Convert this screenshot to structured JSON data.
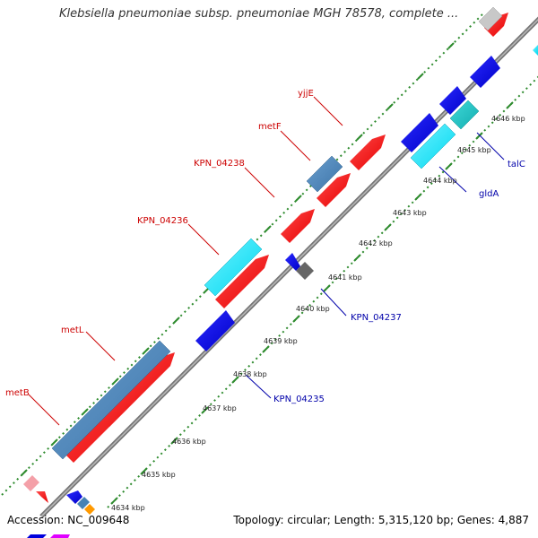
{
  "title": "Klebsiella pneumoniae subsp. pneumoniae MGH 78578, complete ...",
  "footer": {
    "accession": "Accession: NC_009648",
    "topology": "Topology: circular; Length: 5,315,120 bp; Genes: 4,887"
  },
  "colors": {
    "forward_gene": "#ff0000",
    "reverse_gene": "#0000dd",
    "operon": "#4682b4",
    "cyan_gene": "#00e5ff",
    "teal_gene": "#20c0c0",
    "grey_gene": "#666666",
    "ruler_dash": "#228b22",
    "forward_label": "#cc0000",
    "reverse_label": "#0000aa"
  },
  "ruler_labels": [
    "4634 kbp",
    "4635 kbp",
    "4636 kbp",
    "4637 kbp",
    "4638 kbp",
    "4639 kbp",
    "4640 kbp",
    "4641 kbp",
    "4642 kbp",
    "4643 kbp",
    "4644 kbp",
    "4645 kbp",
    "4646 kbp"
  ],
  "gene_labels": {
    "top": [
      "yjjE",
      "metF",
      "KPN_04238",
      "KPN_04236",
      "metL",
      "metB"
    ],
    "bottom": [
      "talC",
      "gldA",
      "KPN_04237",
      "KPN_04235"
    ]
  }
}
